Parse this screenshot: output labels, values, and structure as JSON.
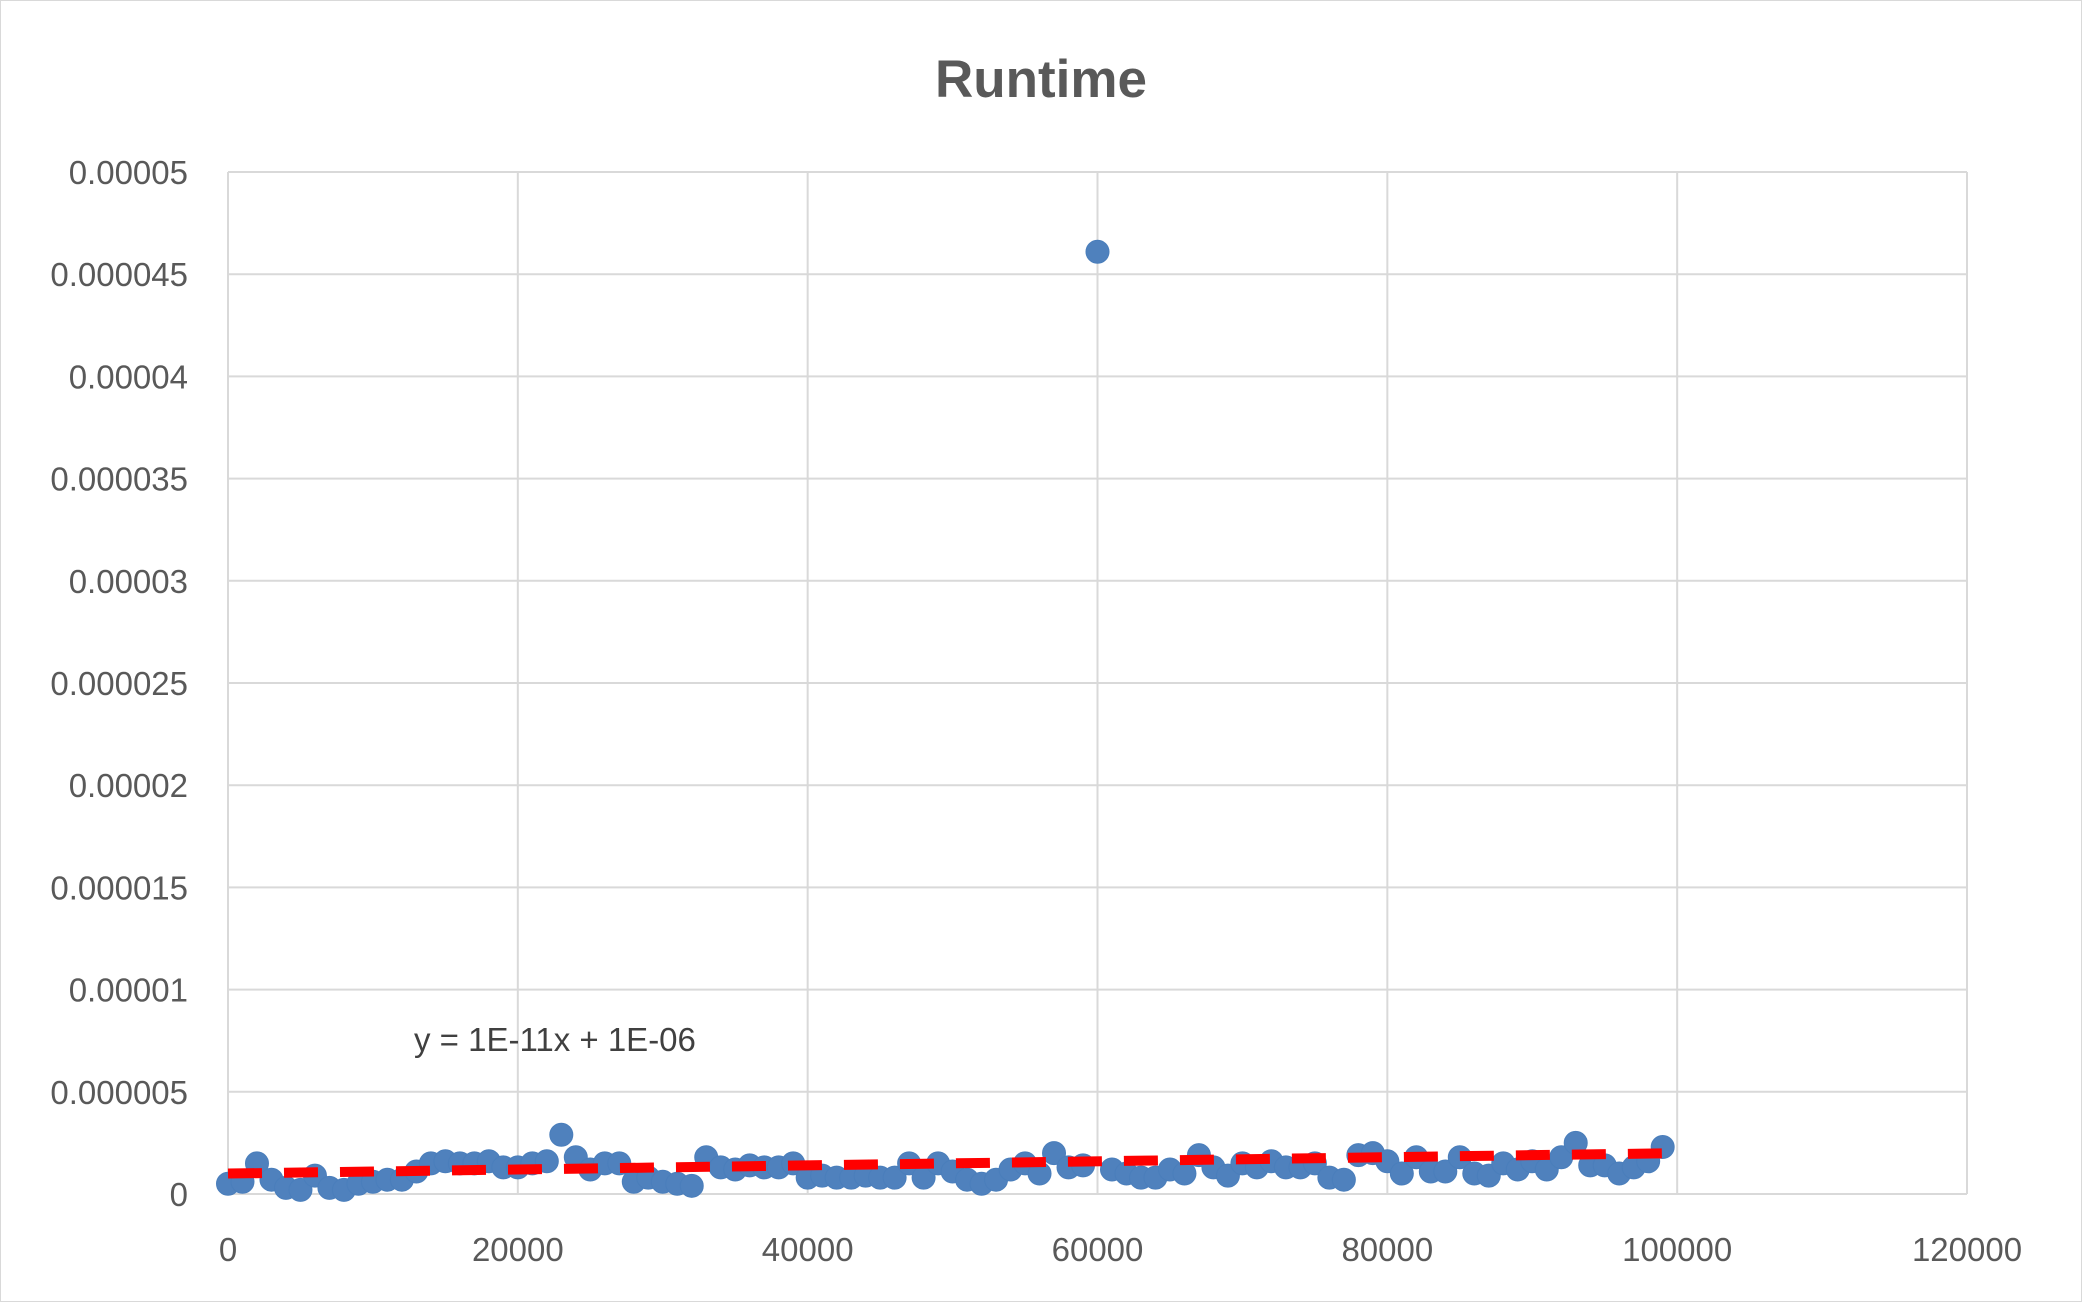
{
  "chart_data": {
    "type": "scatter",
    "title": "Runtime",
    "xlabel": "",
    "ylabel": "",
    "xlim": [
      0,
      120000
    ],
    "ylim": [
      0,
      5e-05
    ],
    "x_ticks": [
      "0",
      "20000",
      "40000",
      "60000",
      "80000",
      "100000",
      "120000"
    ],
    "y_ticks": [
      "0",
      "0.000005",
      "0.00001",
      "0.000015",
      "0.00002",
      "0.000025",
      "0.00003",
      "0.000035",
      "0.00004",
      "0.000045",
      "0.00005"
    ],
    "grid": true,
    "legend": "none",
    "series": [
      {
        "marker_color": "#4F81BD",
        "points": [
          [
            0,
            5e-07
          ],
          [
            1000,
            6e-07
          ],
          [
            2000,
            1.5e-06
          ],
          [
            3000,
            7e-07
          ],
          [
            4000,
            3e-07
          ],
          [
            5000,
            2e-07
          ],
          [
            6000,
            9e-07
          ],
          [
            7000,
            3e-07
          ],
          [
            8000,
            2e-07
          ],
          [
            9000,
            5e-07
          ],
          [
            10000,
            6e-07
          ],
          [
            11000,
            7e-07
          ],
          [
            12000,
            7e-07
          ],
          [
            13000,
            1.1e-06
          ],
          [
            14000,
            1.5e-06
          ],
          [
            15000,
            1.6e-06
          ],
          [
            16000,
            1.5e-06
          ],
          [
            17000,
            1.5e-06
          ],
          [
            18000,
            1.6e-06
          ],
          [
            19000,
            1.3e-06
          ],
          [
            20000,
            1.3e-06
          ],
          [
            21000,
            1.5e-06
          ],
          [
            22000,
            1.6e-06
          ],
          [
            23000,
            2.9e-06
          ],
          [
            24000,
            1.8e-06
          ],
          [
            25000,
            1.2e-06
          ],
          [
            26000,
            1.5e-06
          ],
          [
            27000,
            1.5e-06
          ],
          [
            28000,
            6e-07
          ],
          [
            29000,
            8e-07
          ],
          [
            30000,
            6e-07
          ],
          [
            31000,
            5e-07
          ],
          [
            32000,
            4e-07
          ],
          [
            33000,
            1.8e-06
          ],
          [
            34000,
            1.3e-06
          ],
          [
            35000,
            1.2e-06
          ],
          [
            36000,
            1.4e-06
          ],
          [
            37000,
            1.3e-06
          ],
          [
            38000,
            1.3e-06
          ],
          [
            39000,
            1.5e-06
          ],
          [
            40000,
            8e-07
          ],
          [
            41000,
            9e-07
          ],
          [
            42000,
            8e-07
          ],
          [
            43000,
            8e-07
          ],
          [
            44000,
            9e-07
          ],
          [
            45000,
            8e-07
          ],
          [
            46000,
            8e-07
          ],
          [
            47000,
            1.5e-06
          ],
          [
            48000,
            8e-07
          ],
          [
            49000,
            1.5e-06
          ],
          [
            50000,
            1.1e-06
          ],
          [
            51000,
            7e-07
          ],
          [
            52000,
            5e-07
          ],
          [
            53000,
            7e-07
          ],
          [
            54000,
            1.2e-06
          ],
          [
            55000,
            1.5e-06
          ],
          [
            56000,
            1e-06
          ],
          [
            57000,
            2e-06
          ],
          [
            58000,
            1.3e-06
          ],
          [
            59000,
            1.4e-06
          ],
          [
            60000,
            4.61e-05
          ],
          [
            61000,
            1.2e-06
          ],
          [
            62000,
            1e-06
          ],
          [
            63000,
            8e-07
          ],
          [
            64000,
            8e-07
          ],
          [
            65000,
            1.2e-06
          ],
          [
            66000,
            1e-06
          ],
          [
            67000,
            1.9e-06
          ],
          [
            68000,
            1.3e-06
          ],
          [
            69000,
            9e-07
          ],
          [
            70000,
            1.5e-06
          ],
          [
            71000,
            1.3e-06
          ],
          [
            72000,
            1.6e-06
          ],
          [
            73000,
            1.3e-06
          ],
          [
            74000,
            1.3e-06
          ],
          [
            75000,
            1.5e-06
          ],
          [
            76000,
            8e-07
          ],
          [
            77000,
            7e-07
          ],
          [
            78000,
            1.9e-06
          ],
          [
            79000,
            2e-06
          ],
          [
            80000,
            1.6e-06
          ],
          [
            81000,
            1e-06
          ],
          [
            82000,
            1.8e-06
          ],
          [
            83000,
            1.1e-06
          ],
          [
            84000,
            1.1e-06
          ],
          [
            85000,
            1.8e-06
          ],
          [
            86000,
            1e-06
          ],
          [
            87000,
            9e-07
          ],
          [
            88000,
            1.5e-06
          ],
          [
            89000,
            1.2e-06
          ],
          [
            90000,
            1.6e-06
          ],
          [
            91000,
            1.2e-06
          ],
          [
            92000,
            1.8e-06
          ],
          [
            93000,
            2.5e-06
          ],
          [
            94000,
            1.4e-06
          ],
          [
            95000,
            1.4e-06
          ],
          [
            96000,
            1e-06
          ],
          [
            97000,
            1.3e-06
          ],
          [
            98000,
            1.6e-06
          ],
          [
            99000,
            2.3e-06
          ]
        ]
      }
    ],
    "trendline": {
      "type": "linear",
      "color": "#FF0000",
      "style": "dashed",
      "slope": 1e-11,
      "intercept": 1e-06,
      "x_range": [
        0,
        99000
      ],
      "equation": "y = 1E-11x + 1E-06"
    }
  }
}
